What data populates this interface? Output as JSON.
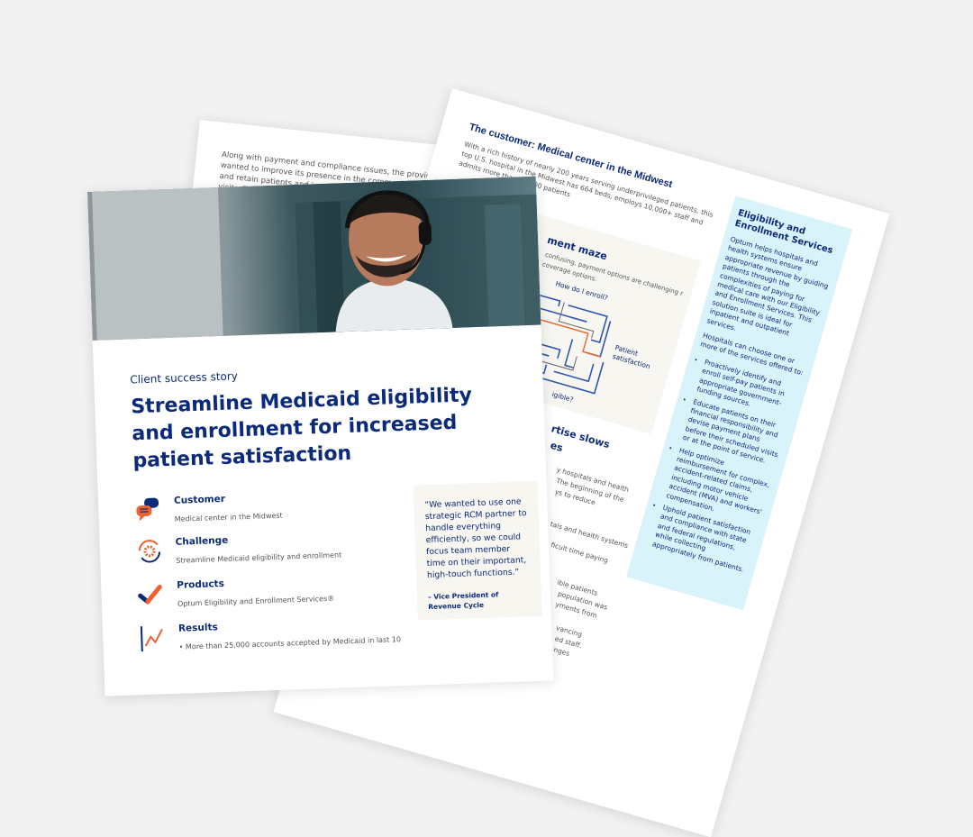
{
  "back_page": {
    "paragraph": "Along with payment and compliance issues, the provider wanted to improve its presence in the community to attract and retain patients and improve patient satisfaction during visits. To achieve this, the organization needed to im"
  },
  "detail_page": {
    "heading": "The customer: Medical center in the Midwest",
    "intro": "With a rich history of nearly 200 years serving underprivileged patients, this top U.S. hospital in the Midwest has 664 beds, employs 10,000+ staff and admits more than 35,000 patients",
    "maze": {
      "title_fragment": "ment maze",
      "text_fragment": "confusing, payment options are challenging r coverage options.",
      "question_enroll": "How do I enroll?",
      "question_eligible_fragment": "igible?",
      "outcome": "Patient satisfaction"
    },
    "section2_fragment": [
      "rtise slows",
      "es"
    ],
    "body_fragments": [
      "y hospitals and health",
      "The beginning of the",
      "ys to reduce",
      "tals and health systems",
      "ficult time paying",
      "ible patients",
      " population was",
      "yments from",
      "vancing",
      "ed staff.",
      "nges"
    ],
    "sidebar": {
      "title": "Eligibility and Enrollment Services",
      "paragraph1": "Optum helps hospitals and health systems ensure appropriate revenue by guiding patients through the complexities of paying for medical care with our Eligibility and Enrollment Services. This solution suite is ideal for inpatient and outpatient services.",
      "paragraph2": "Hospitals can choose one or more of the services offered to:",
      "bullets": [
        "Proactively identify and enroll self-pay patients in appropriate government-funding sources.",
        "Educate patients on their financial responsibility and devise payment plans before their scheduled visits or at the point of service.",
        "Help optimize reimbursement for complex, accident-related claims, including motor vehicle accident (MVA) and workers' compensation.",
        "Uphold patient satisfaction and compliance with state and federal regulations, while collecting appropriately from patients."
      ]
    }
  },
  "cover_page": {
    "eyebrow": "Client success story",
    "title": "Streamline Medicaid eligibility and enrollment for increased patient satisfaction",
    "items": [
      {
        "icon": "chat-bubbles-icon",
        "title": "Customer",
        "text": "Medical center in the Midwest"
      },
      {
        "icon": "gear-cycle-icon",
        "title": "Challenge",
        "text": "Streamline Medicaid eligibility and enrollment"
      },
      {
        "icon": "checkmark-icon",
        "title": "Products",
        "text": "Optum Eligibility and Enrollment Services®"
      },
      {
        "icon": "trend-chart-icon",
        "title": "Results",
        "text": "• More than 25,000 accounts accepted by Medicaid in last 10"
      }
    ],
    "quote": "“We wanted to use one strategic RCM partner to handle everything efficiently, so we could focus team member time on their important, high-touch functions.”",
    "attribution": "– Vice President of Revenue Cycle"
  },
  "colors": {
    "navy": "#0b2a7a",
    "orange": "#f0612d",
    "sidebar_bg": "#d9f3fa",
    "quote_bg": "#f7f6f1",
    "background": "#f1f1f1"
  }
}
